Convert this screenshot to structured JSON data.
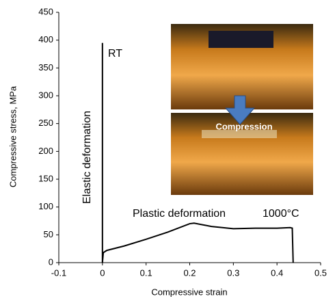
{
  "chart_data": {
    "type": "line",
    "x_label": "Compressive strain",
    "y_label": "Compressive stress, MPa",
    "xlim": [
      -0.1,
      0.5
    ],
    "xticks": [
      -0.1,
      0,
      0.1,
      0.2,
      0.3,
      0.4,
      0.5
    ],
    "ylim": [
      0,
      450
    ],
    "yticks": [
      0,
      50,
      100,
      150,
      200,
      250,
      300,
      350,
      400,
      450
    ],
    "grid": false,
    "series": [
      {
        "name": "RT",
        "color": "#000000",
        "x": [
          0,
          0
        ],
        "values": [
          0,
          395
        ]
      },
      {
        "name": "1000°C",
        "color": "#000000",
        "x": [
          0,
          0.002,
          0.01,
          0.05,
          0.1,
          0.15,
          0.2,
          0.21,
          0.25,
          0.3,
          0.35,
          0.4,
          0.43,
          0.435,
          0.437
        ],
        "values": [
          0,
          18,
          22,
          30,
          42,
          55,
          70,
          71,
          65,
          61,
          62,
          62,
          63,
          62,
          0
        ]
      }
    ],
    "annotations": [
      "Elastic deformation",
      "Plastic deformation",
      "Compression"
    ]
  }
}
